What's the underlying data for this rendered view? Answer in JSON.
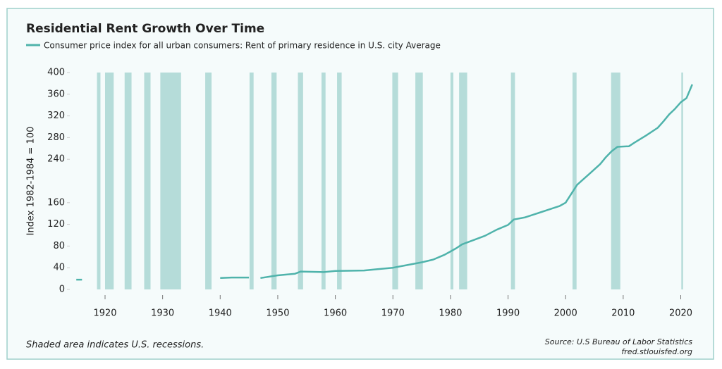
{
  "chart_data": {
    "type": "line",
    "title": "Residential Rent Growth Over Time",
    "ylabel": "Index 1982-1984 = 100",
    "note": "Shaded area indicates U.S. recessions.",
    "source": "Source: U.S Bureau of Labor Statistics",
    "source_url": "fred.stlouisfed.org",
    "xlim": [
      1914,
      2023
    ],
    "xticks": [
      1920,
      1930,
      1940,
      1950,
      1960,
      1970,
      1980,
      1990,
      2000,
      2010,
      2020
    ],
    "ylim": [
      0,
      400
    ],
    "yticks": [
      0,
      40,
      80,
      120,
      160,
      240,
      280,
      320,
      360,
      400
    ],
    "recession_color": "#b5dcd9",
    "recessions": [
      [
        1918.6,
        1919.2
      ],
      [
        1920,
        1921.5
      ],
      [
        1923.4,
        1924.6
      ],
      [
        1926.8,
        1927.9
      ],
      [
        1929.6,
        1933.2
      ],
      [
        1937.4,
        1938.5
      ],
      [
        1945.1,
        1945.8
      ],
      [
        1948.9,
        1949.8
      ],
      [
        1953.5,
        1954.4
      ],
      [
        1957.6,
        1958.3
      ],
      [
        1960.3,
        1961.1
      ],
      [
        1969.9,
        1970.9
      ],
      [
        1973.9,
        1975.2
      ],
      [
        1980,
        1980.5
      ],
      [
        1981.5,
        1982.9
      ],
      [
        1990.5,
        1991.2
      ],
      [
        2001.2,
        2001.9
      ],
      [
        2007.9,
        2009.5
      ],
      [
        2020.1,
        2020.4
      ]
    ],
    "x": [
      1915,
      1916,
      1917,
      1940,
      1942,
      1945,
      1946,
      1947,
      1950,
      1953,
      1954,
      1958,
      1960,
      1965,
      1967,
      1970,
      1972,
      1975,
      1977,
      1979,
      1981,
      1982,
      1984,
      1986,
      1988,
      1990,
      1991,
      1993,
      1995,
      1997,
      1999,
      2000,
      2002,
      2004,
      2006,
      2007,
      2008,
      2009,
      2011,
      2012,
      2014,
      2016,
      2017,
      2018,
      2019,
      2020,
      2021,
      2022
    ],
    "series": [
      {
        "name": "Consumer price index for all urban consumers: Rent of primary residence in U.S. city Average",
        "color": "#4fb3ab",
        "values": [
          18,
          18,
          null,
          21,
          22,
          22,
          null,
          21,
          26,
          29,
          33,
          32,
          34,
          35,
          37,
          40,
          44,
          50,
          55,
          64,
          76,
          83,
          91,
          99,
          110,
          119,
          129,
          133,
          140,
          147,
          154,
          160,
          193,
          212,
          231,
          244,
          255,
          263,
          264,
          271,
          284,
          298,
          310,
          323,
          333,
          345,
          353,
          378
        ]
      }
    ]
  }
}
